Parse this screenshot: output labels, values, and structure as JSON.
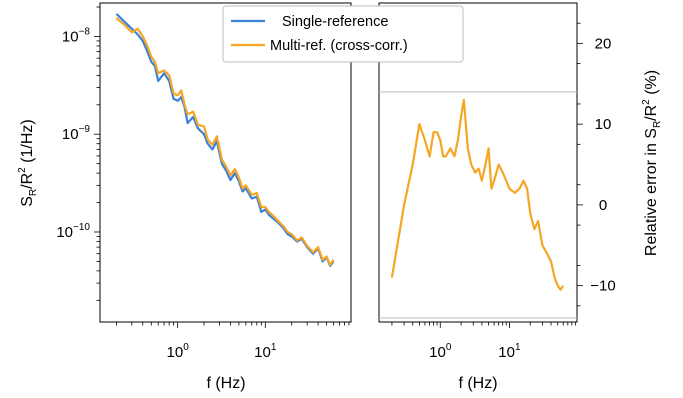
{
  "chart_data": [
    {
      "type": "line",
      "xscale": "log",
      "yscale": "log",
      "xlabel": "f (Hz)",
      "ylabel": "S_R/R^2 (1/Hz)",
      "xlim": [
        0.13,
        95
      ],
      "ylim": [
        1.2e-11,
        2.2e-08
      ],
      "xticks": [
        1,
        10
      ],
      "yticks": [
        1e-10,
        1e-09,
        1e-08
      ],
      "grid": false,
      "legend_position": "top-center",
      "series": [
        {
          "name": "Single-reference",
          "color": "#3b82d6",
          "x": [
            0.2,
            0.25,
            0.3,
            0.35,
            0.4,
            0.45,
            0.5,
            0.55,
            0.6,
            0.7,
            0.8,
            0.9,
            1.0,
            1.1,
            1.2,
            1.3,
            1.5,
            1.7,
            2.0,
            2.2,
            2.5,
            2.8,
            3.2,
            3.6,
            4.0,
            4.5,
            5.0,
            5.5,
            6.0,
            7.0,
            8.0,
            9.0,
            10,
            11,
            12,
            14,
            16,
            18,
            20,
            23,
            26,
            30,
            35,
            40,
            45,
            50,
            55,
            60
          ],
          "y": [
            1.7e-08,
            1.4e-08,
            1.2e-08,
            1.05e-08,
            9e-09,
            7e-09,
            5.5e-09,
            5e-09,
            3.5e-09,
            4.2e-09,
            3.5e-09,
            2.3e-09,
            2.2e-09,
            2.4e-09,
            1.9e-09,
            1.3e-09,
            1.5e-09,
            1.15e-09,
            1e-09,
            8e-10,
            7e-10,
            8.5e-10,
            5e-10,
            4.2e-10,
            3.4e-10,
            4e-10,
            3.3e-10,
            2.6e-10,
            2.8e-10,
            2.2e-10,
            2.3e-10,
            1.6e-10,
            1.7e-10,
            1.5e-10,
            1.4e-10,
            1.25e-10,
            1.1e-10,
            9.5e-11,
            9e-11,
            8e-11,
            8.5e-11,
            7e-11,
            6e-11,
            6.8e-11,
            5e-11,
            5.5e-11,
            4.5e-11,
            5e-11
          ]
        },
        {
          "name": "Multi-ref. (cross-corr.)",
          "color": "#f5a623",
          "x": [
            0.2,
            0.25,
            0.3,
            0.35,
            0.4,
            0.45,
            0.5,
            0.55,
            0.6,
            0.7,
            0.8,
            0.9,
            1.0,
            1.1,
            1.2,
            1.3,
            1.5,
            1.7,
            2.0,
            2.2,
            2.5,
            2.8,
            3.2,
            3.6,
            4.0,
            4.5,
            5.0,
            5.5,
            6.0,
            7.0,
            8.0,
            9.0,
            10,
            11,
            12,
            14,
            16,
            18,
            20,
            23,
            26,
            30,
            35,
            40,
            45,
            50,
            55,
            60
          ],
          "y": [
            1.55e-08,
            1.3e-08,
            1.1e-08,
            1.2e-08,
            1e-08,
            8e-09,
            6.2e-09,
            5.5e-09,
            4.2e-09,
            4.5e-09,
            4e-09,
            2.6e-09,
            2.5e-09,
            2.8e-09,
            2e-09,
            1.6e-09,
            1.7e-09,
            1.25e-09,
            1.2e-09,
            8.8e-10,
            7.8e-10,
            9.5e-10,
            5.5e-10,
            4.6e-10,
            3.8e-10,
            4.4e-10,
            3.6e-10,
            2.8e-10,
            3e-10,
            2.4e-10,
            2.5e-10,
            1.8e-10,
            1.8e-10,
            1.6e-10,
            1.5e-10,
            1.3e-10,
            1.15e-10,
            1e-10,
            9.5e-11,
            8.2e-11,
            8.8e-11,
            7.2e-11,
            6.2e-11,
            7e-11,
            5.2e-11,
            5.6e-11,
            4.6e-11,
            5.2e-11
          ]
        }
      ]
    },
    {
      "type": "line",
      "xscale": "log",
      "yscale": "linear",
      "xlabel": "f (Hz)",
      "ylabel": "Relative error in S_R/R^2 (%)",
      "ylabel_position": "right",
      "xlim": [
        0.13,
        95
      ],
      "ylim": [
        -14.5,
        25
      ],
      "xticks": [
        1,
        10
      ],
      "yticks": [
        -10,
        0,
        10,
        20
      ],
      "hlines": [
        -14,
        14
      ],
      "grid": false,
      "series": [
        {
          "color": "#f5a623",
          "x": [
            0.2,
            0.3,
            0.4,
            0.5,
            0.6,
            0.7,
            0.8,
            0.9,
            1.0,
            1.1,
            1.2,
            1.4,
            1.6,
            1.8,
            2.0,
            2.2,
            2.5,
            2.8,
            3.2,
            3.6,
            4.0,
            4.5,
            5.0,
            5.5,
            6.0,
            7.0,
            8.0,
            9.0,
            10,
            12,
            14,
            16,
            18,
            20,
            23,
            26,
            30,
            35,
            40,
            45,
            50,
            55,
            60
          ],
          "y": [
            -9,
            0,
            5,
            10,
            8,
            6,
            9,
            9,
            8,
            6,
            6,
            7,
            6,
            8,
            11,
            13,
            7,
            5,
            4,
            4.5,
            3,
            5,
            7,
            2,
            3,
            5,
            4,
            3,
            2,
            1.5,
            2,
            3,
            2,
            -1,
            -3,
            -2,
            -5,
            -6,
            -7,
            -9,
            -10,
            -10.5,
            -10
          ]
        }
      ]
    }
  ]
}
